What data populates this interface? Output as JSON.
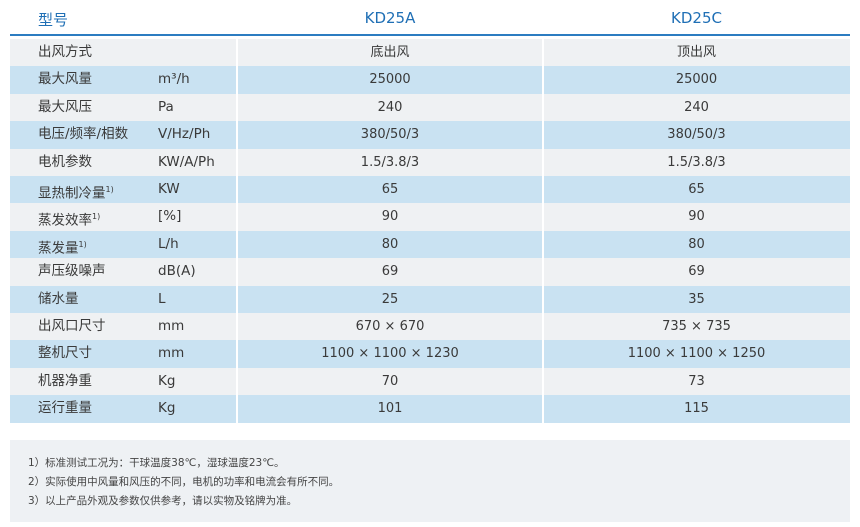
{
  "table": {
    "header": [
      "型号",
      "KD25A",
      "KD25C"
    ],
    "rows": [
      {
        "name": "出风方式",
        "unit": null,
        "values": [
          "底出风",
          "顶出风"
        ]
      },
      {
        "name": "最大风量",
        "unit": "m³/h",
        "values": [
          "25000",
          "25000"
        ]
      },
      {
        "name": "最大风压",
        "unit": "Pa",
        "values": [
          "240",
          "240"
        ]
      },
      {
        "name": "电压/频率/相数",
        "unit": "V/Hz/Ph",
        "values": [
          "380/50/3",
          "380/50/3"
        ]
      },
      {
        "name": "电机参数",
        "unit": "KW/A/Ph",
        "values": [
          "1.5/3.8/3",
          "1.5/3.8/3"
        ]
      },
      {
        "name": "显热制冷量",
        "note": "1)",
        "unit": "KW",
        "values": [
          "65",
          "65"
        ]
      },
      {
        "name": "蒸发效率",
        "note": "1)",
        "unit": "[%]",
        "values": [
          "90",
          "90"
        ]
      },
      {
        "name": "蒸发量",
        "note": "1)",
        "unit": "L/h",
        "values": [
          "80",
          "80"
        ]
      },
      {
        "name": "声压级噪声",
        "unit": "dB(A)",
        "values": [
          "69",
          "69"
        ]
      },
      {
        "name": "储水量",
        "unit": "L",
        "values": [
          "25",
          "35"
        ]
      },
      {
        "name": "出风口尺寸",
        "unit": "mm",
        "values": [
          "670 × 670",
          "735 × 735"
        ]
      },
      {
        "name": "整机尺寸",
        "unit": "mm",
        "values": [
          "1100 × 1100 × 1230",
          "1100 × 1100 × 1250"
        ]
      },
      {
        "name": "机器净重",
        "unit": "Kg",
        "values": [
          "70",
          "73"
        ]
      },
      {
        "name": "运行重量",
        "unit": "Kg",
        "values": [
          "101",
          "115"
        ]
      }
    ]
  },
  "notes": [
    "1）标准测试工况为：干球温度38℃，湿球温度23℃。",
    "2）实际使用中风量和风压的不同，电机的功率和电流会有所不同。",
    "3）以上产品外观及参数仅供参考，请以实物及铭牌为准。"
  ]
}
